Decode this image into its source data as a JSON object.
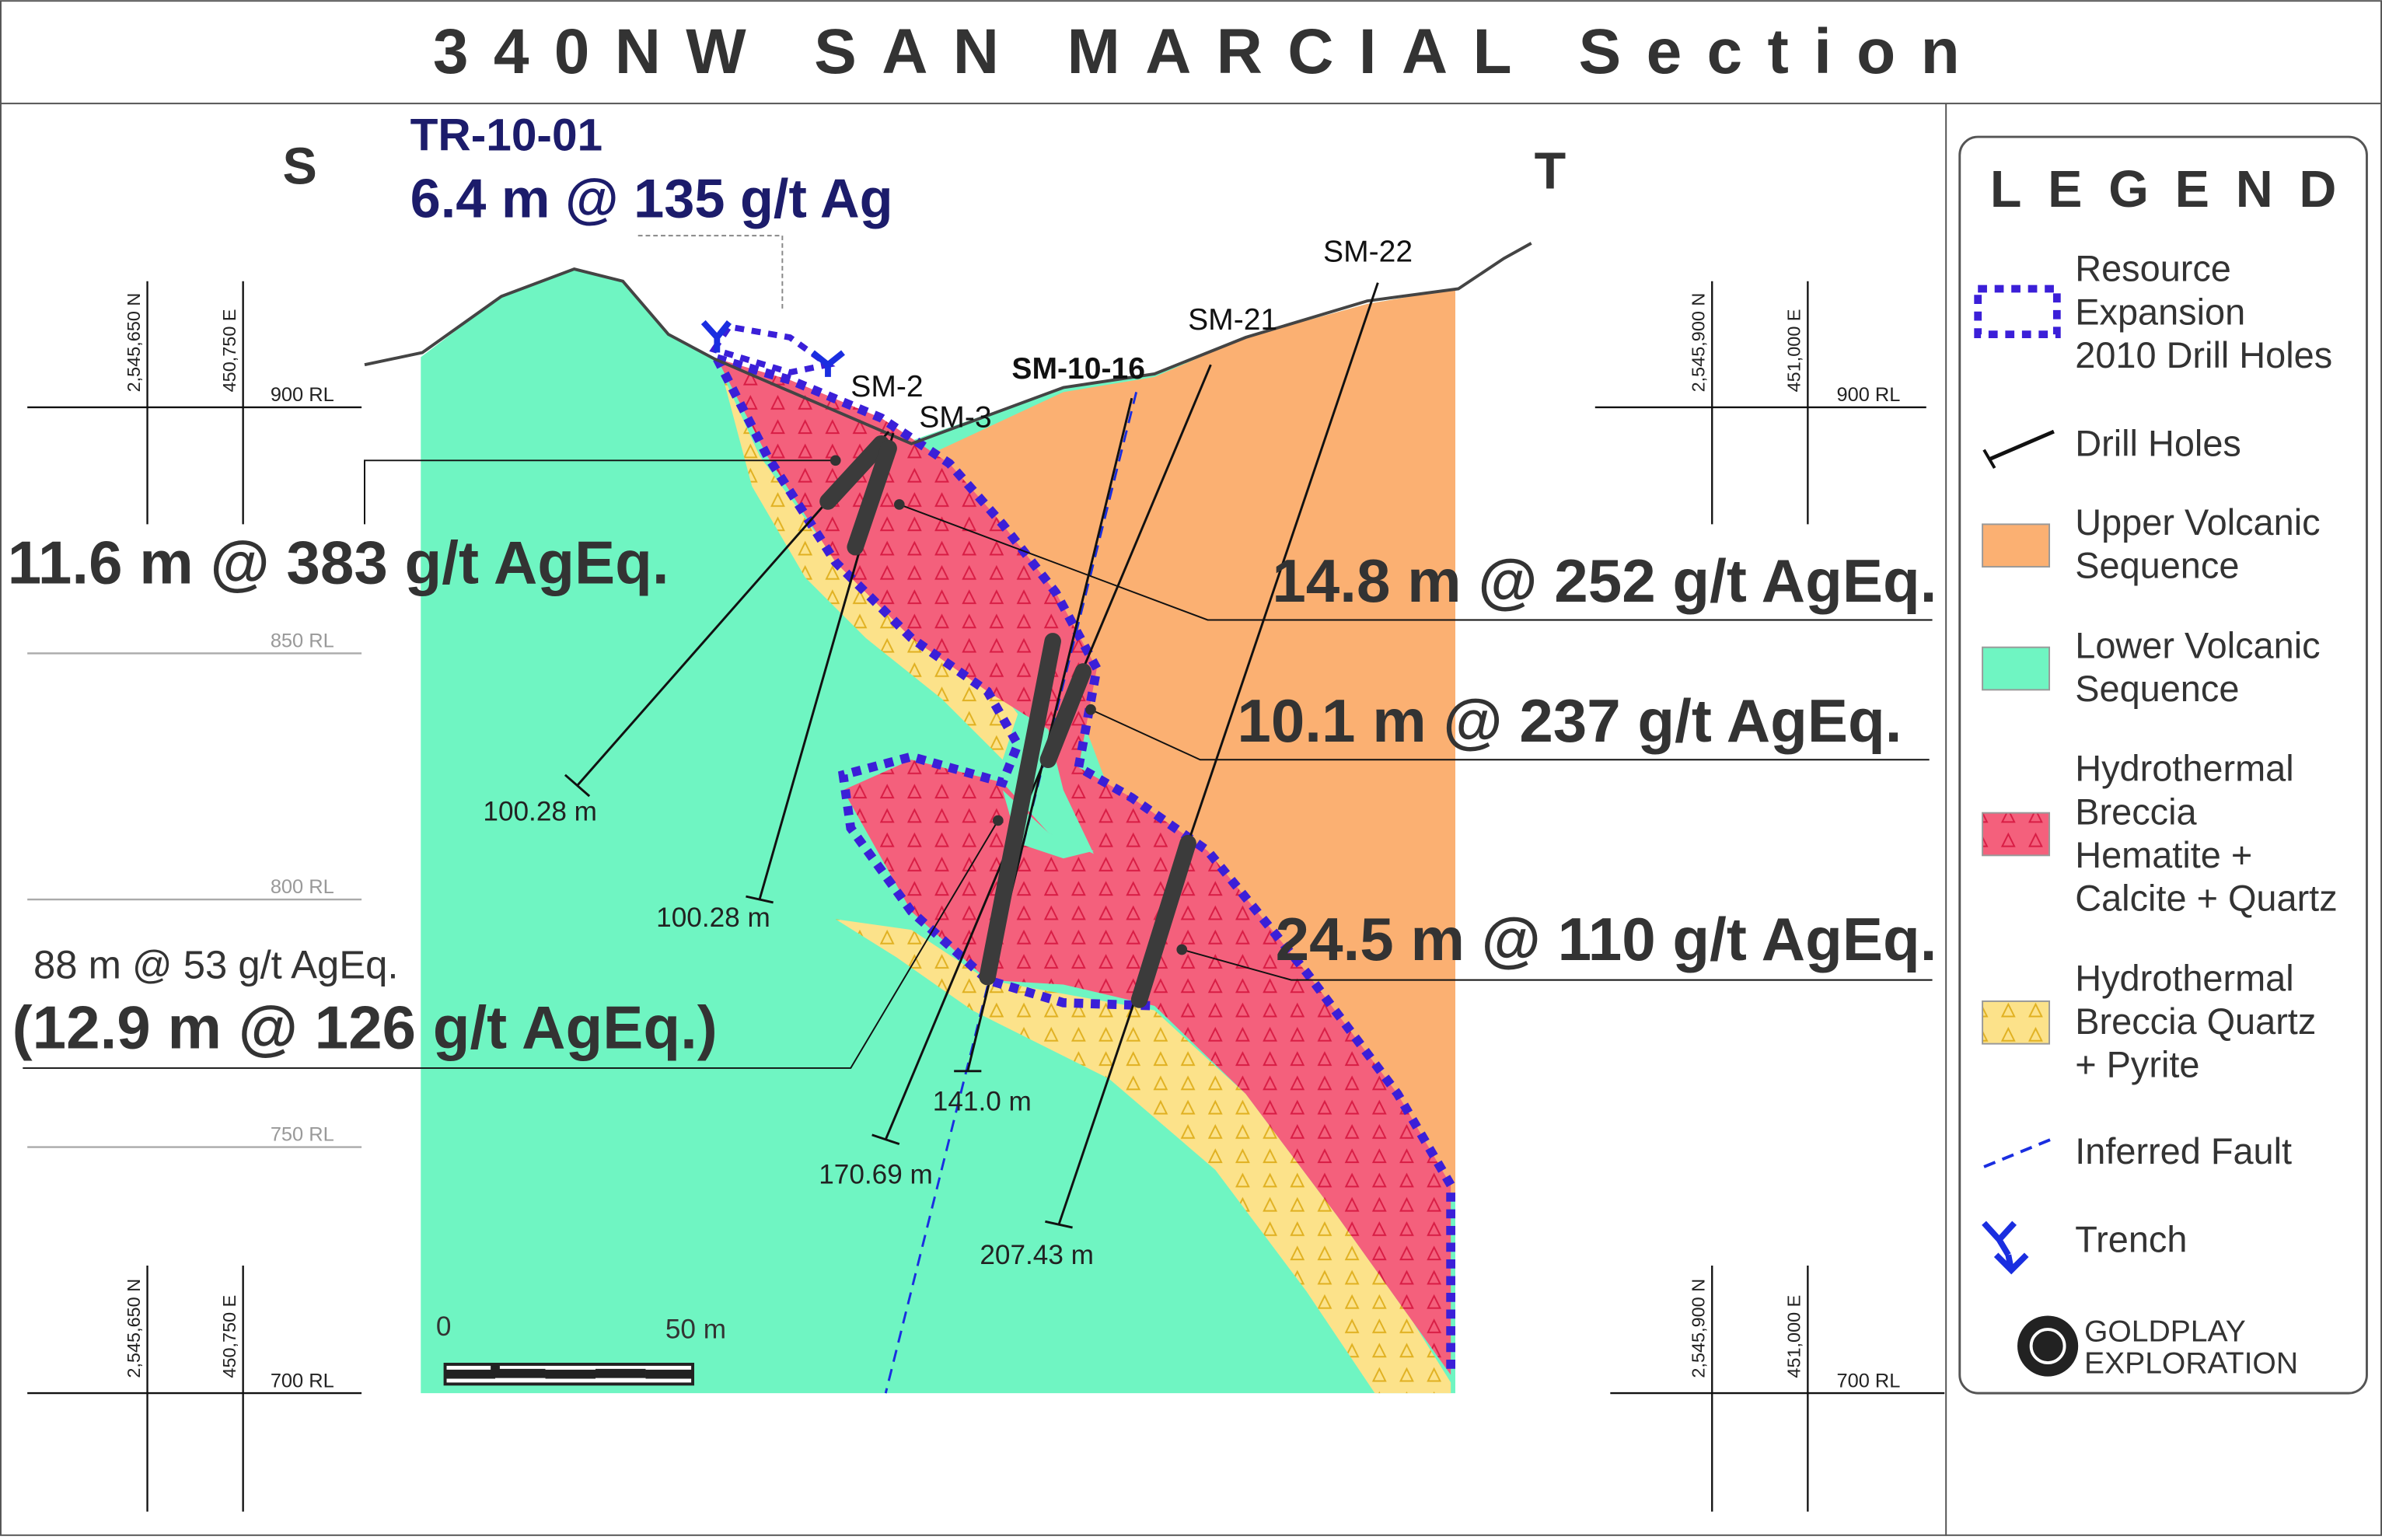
{
  "title": "340NW SAN MARCIAL Section",
  "section_ends": {
    "left": "S",
    "right": "T"
  },
  "trench": {
    "name": "TR-10-01",
    "result": "6.4 m @ 135 g/t Ag"
  },
  "intercepts": [
    "11.6 m @ 383 g/t AgEq.",
    "14.8 m @ 252 g/t AgEq.",
    "10.1 m @ 237 g/t AgEq.",
    "24.5 m @ 110 g/t AgEq.",
    "88 m @ 53 g/t AgEq.",
    "(12.9 m @ 126 g/t AgEq.)"
  ],
  "drill_holes": [
    "SM-2",
    "SM-3",
    "SM-10-16",
    "SM-21",
    "SM-22"
  ],
  "hole_depths": [
    "100.28 m",
    "100.28 m",
    "141.0 m",
    "170.69 m",
    "207.43 m"
  ],
  "elevations": {
    "left": [
      "900 RL",
      "850 RL",
      "800 RL",
      "750 RL",
      "700 RL"
    ],
    "right": [
      "900 RL",
      "700 RL"
    ]
  },
  "coordinates": {
    "left_north": "2,545,650 N",
    "left_east": "450,750 E",
    "right_north": "2,545,900 N",
    "right_east": "451,000 E"
  },
  "scale_bar": [
    "0",
    "50 m"
  ],
  "legend": {
    "title": "LEGEND",
    "items": [
      [
        "Resource",
        "Expansion",
        "2010 Drill Holes"
      ],
      [
        "Drill Holes"
      ],
      [
        "Upper Volcanic",
        "Sequence"
      ],
      [
        "Lower Volcanic",
        "Sequence"
      ],
      [
        "Hydrothermal",
        "Breccia",
        "Hematite +",
        "Calcite + Quartz"
      ],
      [
        "Hydrothermal",
        "Breccia Quartz",
        "+ Pyrite"
      ],
      [
        "Inferred Fault"
      ],
      [
        "Trench"
      ]
    ]
  },
  "logo": [
    "GOLDPLAY",
    "EXPLORATION"
  ]
}
